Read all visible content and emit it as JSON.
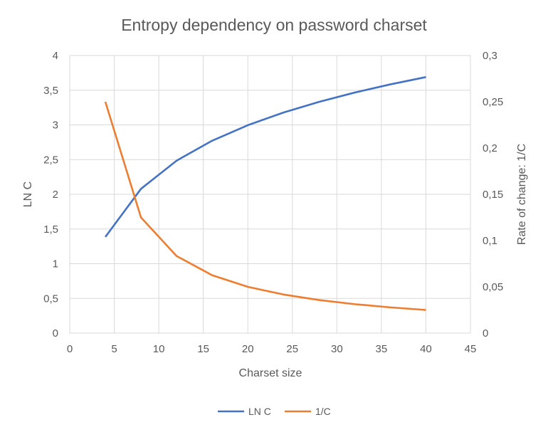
{
  "chart_data": {
    "type": "line",
    "title": "Entropy dependency on password charset",
    "xlabel": "Charset size",
    "ylabel": "LN C",
    "y2label": "Rate of change: 1/C",
    "xlim": [
      0,
      45
    ],
    "ylim": [
      0,
      4
    ],
    "y2lim": [
      0,
      0.3
    ],
    "xticks": [
      "0",
      "5",
      "10",
      "15",
      "20",
      "25",
      "30",
      "35",
      "40",
      "45"
    ],
    "yticks": [
      "0",
      "0,5",
      "1",
      "1,5",
      "2",
      "2,5",
      "3",
      "3,5",
      "4"
    ],
    "y2ticks": [
      "0",
      "0,05",
      "0,1",
      "0,15",
      "0,2",
      "0,25",
      "0,3"
    ],
    "grid": true,
    "legend_position": "bottom",
    "x": [
      4,
      8,
      12,
      16,
      20,
      24,
      28,
      32,
      36,
      40
    ],
    "series": [
      {
        "name": "LN C",
        "axis": "left",
        "color": "#4472C4",
        "values": [
          1.386,
          2.079,
          2.485,
          2.773,
          2.996,
          3.178,
          3.332,
          3.466,
          3.584,
          3.689
        ]
      },
      {
        "name": "1/C",
        "axis": "right",
        "color": "#ED7D31",
        "values": [
          0.25,
          0.125,
          0.0833,
          0.0625,
          0.05,
          0.0417,
          0.0357,
          0.03125,
          0.0278,
          0.025
        ]
      }
    ]
  }
}
